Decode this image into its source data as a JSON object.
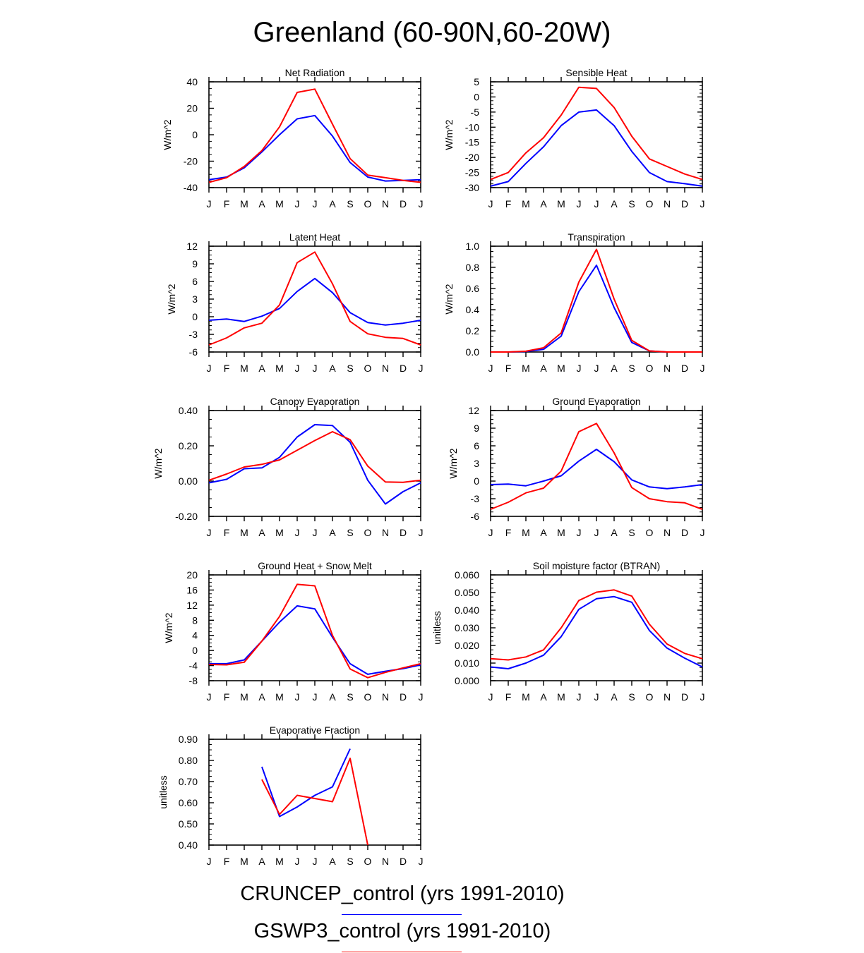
{
  "page_title": "Greenland (60-90N,60-20W)",
  "legend": [
    {
      "label": "CRUNCEP_control (yrs 1991-2010)",
      "color": "#0000ff"
    },
    {
      "label": "GSWP3_control (yrs 1991-2010)",
      "color": "#ff0000"
    }
  ],
  "months": [
    "J",
    "F",
    "M",
    "A",
    "M",
    "J",
    "J",
    "A",
    "S",
    "O",
    "N",
    "D",
    "J"
  ],
  "chart_data": [
    {
      "type": "line",
      "title": "Net Radiation",
      "ylabel": "W/m^2",
      "ylim": [
        -40,
        40
      ],
      "yticks": [
        "40",
        "20",
        "0",
        "-20",
        "-40"
      ],
      "yvals": [
        40,
        20,
        0,
        -20,
        -40
      ],
      "series": [
        {
          "name": "CRUNCEP_control (yrs 1991-2010)",
          "color": "#0000ff",
          "values": [
            -34,
            -32,
            -25,
            -13,
            0,
            12,
            14.5,
            -1,
            -21,
            -32,
            -35,
            -34.5,
            -34
          ]
        },
        {
          "name": "GSWP3_control (yrs 1991-2010)",
          "color": "#ff0000",
          "values": [
            -36,
            -32.5,
            -24,
            -12,
            6,
            32,
            34.5,
            8,
            -18,
            -30.5,
            -32.5,
            -34.5,
            -36
          ]
        }
      ]
    },
    {
      "type": "line",
      "title": "Sensible Heat",
      "ylabel": "W/m^2",
      "ylim": [
        -30,
        5
      ],
      "yticks": [
        "5",
        "0",
        "-5",
        "-10",
        "-15",
        "-20",
        "-25",
        "-30"
      ],
      "yvals": [
        5,
        0,
        -5,
        -10,
        -15,
        -20,
        -25,
        -30
      ],
      "series": [
        {
          "name": "CRUNCEP_control (yrs 1991-2010)",
          "color": "#0000ff",
          "values": [
            -29.5,
            -28,
            -22,
            -16.5,
            -9.5,
            -5,
            -4.3,
            -9.5,
            -18,
            -25,
            -28,
            -28.7,
            -29.5
          ]
        },
        {
          "name": "GSWP3_control (yrs 1991-2010)",
          "color": "#ff0000",
          "values": [
            -27.3,
            -25,
            -18.5,
            -13.5,
            -6,
            3.2,
            2.8,
            -3.5,
            -13,
            -20.5,
            -23,
            -25.5,
            -27.3
          ]
        }
      ]
    },
    {
      "type": "line",
      "title": "Latent Heat",
      "ylabel": "W/m^2",
      "ylim": [
        -6,
        12
      ],
      "yticks": [
        "12",
        "9",
        "6",
        "3",
        "0",
        "-3",
        "-6"
      ],
      "yvals": [
        12,
        9,
        6,
        3,
        0,
        -3,
        -6
      ],
      "series": [
        {
          "name": "CRUNCEP_control (yrs 1991-2010)",
          "color": "#0000ff",
          "values": [
            -0.6,
            -0.4,
            -0.8,
            0.1,
            1.4,
            4.3,
            6.5,
            4.1,
            0.7,
            -1,
            -1.4,
            -1.1,
            -0.6
          ]
        },
        {
          "name": "GSWP3_control (yrs 1991-2010)",
          "color": "#ff0000",
          "values": [
            -4.8,
            -3.6,
            -1.9,
            -1.1,
            2,
            9.2,
            11,
            5.6,
            -0.8,
            -2.9,
            -3.5,
            -3.7,
            -4.8
          ]
        }
      ]
    },
    {
      "type": "line",
      "title": "Transpiration",
      "ylabel": "W/m^2",
      "ylim": [
        0,
        1.0
      ],
      "yticks": [
        "1.0",
        "0.8",
        "0.6",
        "0.4",
        "0.2",
        "0.0"
      ],
      "yvals": [
        1.0,
        0.8,
        0.6,
        0.4,
        0.2,
        0.0
      ],
      "series": [
        {
          "name": "CRUNCEP_control (yrs 1991-2010)",
          "color": "#0000ff",
          "values": [
            0,
            0,
            0.005,
            0.025,
            0.15,
            0.57,
            0.82,
            0.42,
            0.09,
            0.01,
            0,
            0,
            0
          ]
        },
        {
          "name": "GSWP3_control (yrs 1991-2010)",
          "color": "#ff0000",
          "values": [
            0,
            0,
            0.007,
            0.04,
            0.18,
            0.66,
            0.97,
            0.5,
            0.11,
            0.01,
            0,
            0,
            0
          ]
        }
      ]
    },
    {
      "type": "line",
      "title": "Canopy Evaporation",
      "ylabel": "W/m^2",
      "ylim": [
        -0.2,
        0.4
      ],
      "yticks": [
        "0.40",
        "0.20",
        "0.00",
        "-0.20"
      ],
      "yvals": [
        0.4,
        0.2,
        0.0,
        -0.2
      ],
      "series": [
        {
          "name": "CRUNCEP_control (yrs 1991-2010)",
          "color": "#0000ff",
          "values": [
            -0.01,
            0.01,
            0.07,
            0.075,
            0.135,
            0.25,
            0.32,
            0.315,
            0.22,
            0.005,
            -0.13,
            -0.06,
            -0.01
          ]
        },
        {
          "name": "GSWP3_control (yrs 1991-2010)",
          "color": "#ff0000",
          "values": [
            0.005,
            0.04,
            0.08,
            0.095,
            0.12,
            0.175,
            0.23,
            0.28,
            0.235,
            0.085,
            -0.005,
            -0.007,
            0.005
          ]
        }
      ]
    },
    {
      "type": "line",
      "title": "Ground Evaporation",
      "ylabel": "W/m^2",
      "ylim": [
        -6,
        12
      ],
      "yticks": [
        "12",
        "9",
        "6",
        "3",
        "0",
        "-3",
        "-6"
      ],
      "yvals": [
        12,
        9,
        6,
        3,
        0,
        -3,
        -6
      ],
      "series": [
        {
          "name": "CRUNCEP_control (yrs 1991-2010)",
          "color": "#0000ff",
          "values": [
            -0.6,
            -0.5,
            -0.8,
            0,
            0.9,
            3.4,
            5.4,
            3.3,
            0.2,
            -1,
            -1.3,
            -1,
            -0.6
          ]
        },
        {
          "name": "GSWP3_control (yrs 1991-2010)",
          "color": "#ff0000",
          "values": [
            -4.8,
            -3.6,
            -2,
            -1.2,
            1.7,
            8.4,
            9.8,
            4.8,
            -1.1,
            -3,
            -3.5,
            -3.7,
            -4.8
          ]
        }
      ]
    },
    {
      "type": "line",
      "title": "Ground Heat + Snow Melt",
      "ylabel": "W/m^2",
      "ylim": [
        -8,
        20
      ],
      "yticks": [
        "20",
        "16",
        "12",
        "8",
        "4",
        "0",
        "-4",
        "-8"
      ],
      "yvals": [
        20,
        16,
        12,
        8,
        4,
        0,
        -4,
        -8
      ],
      "series": [
        {
          "name": "CRUNCEP_control (yrs 1991-2010)",
          "color": "#0000ff",
          "values": [
            -3.5,
            -3.5,
            -2.5,
            2.5,
            7.5,
            11.8,
            11,
            3.5,
            -3.5,
            -6.3,
            -5.5,
            -4.8,
            -3.8
          ]
        },
        {
          "name": "GSWP3_control (yrs 1991-2010)",
          "color": "#ff0000",
          "values": [
            -3.7,
            -3.8,
            -3.1,
            2.5,
            9,
            17.5,
            17.1,
            4,
            -4.9,
            -7.2,
            -5.8,
            -4.6,
            -3.5
          ]
        }
      ]
    },
    {
      "type": "line",
      "title": "Soil moisture factor (BTRAN)",
      "ylabel": "unitless",
      "ylim": [
        0,
        0.06
      ],
      "yticks": [
        "0.060",
        "0.050",
        "0.040",
        "0.030",
        "0.020",
        "0.010",
        "0.000"
      ],
      "yvals": [
        0.06,
        0.05,
        0.04,
        0.03,
        0.02,
        0.01,
        0.0
      ],
      "series": [
        {
          "name": "CRUNCEP_control (yrs 1991-2010)",
          "color": "#0000ff",
          "values": [
            0.0078,
            0.0068,
            0.01,
            0.0145,
            0.025,
            0.0405,
            0.0465,
            0.0477,
            0.0445,
            0.0285,
            0.0185,
            0.0128,
            0.0078
          ]
        },
        {
          "name": "GSWP3_control (yrs 1991-2010)",
          "color": "#ff0000",
          "values": [
            0.0125,
            0.0118,
            0.0135,
            0.0175,
            0.03,
            0.0455,
            0.0502,
            0.0515,
            0.048,
            0.032,
            0.0208,
            0.0155,
            0.0125
          ]
        }
      ]
    },
    {
      "type": "line",
      "title": "Evaporative Fraction",
      "ylabel": "unitless",
      "ylim": [
        0.4,
        0.9
      ],
      "yticks": [
        "0.90",
        "0.80",
        "0.70",
        "0.60",
        "0.50",
        "0.40"
      ],
      "yvals": [
        0.9,
        0.8,
        0.7,
        0.6,
        0.5,
        0.4
      ],
      "series": [
        {
          "name": "CRUNCEP_control (yrs 1991-2010)",
          "color": "#0000ff",
          "values": [
            null,
            null,
            null,
            0.77,
            0.535,
            0.58,
            0.635,
            0.675,
            0.855,
            null,
            null,
            null,
            null
          ]
        },
        {
          "name": "GSWP3_control (yrs 1991-2010)",
          "color": "#ff0000",
          "values": [
            null,
            null,
            null,
            0.71,
            0.545,
            0.635,
            0.62,
            0.605,
            0.81,
            0.4,
            null,
            null,
            null
          ]
        }
      ]
    }
  ]
}
